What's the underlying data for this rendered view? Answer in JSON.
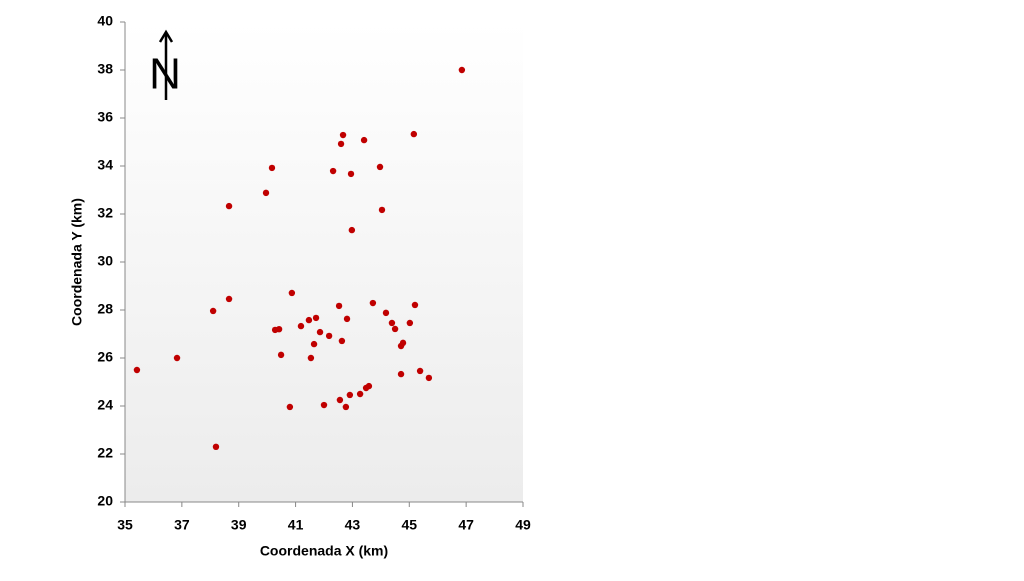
{
  "chart_data": {
    "type": "scatter",
    "x_label": "Coordenada X (km)",
    "y_label": "Coordenada Y (km)",
    "north_label": "N",
    "color": "#c00000",
    "xlim": [
      35,
      49
    ],
    "xticks": [
      35,
      37,
      39,
      41,
      43,
      45,
      47,
      49
    ],
    "ylim": [
      20,
      40
    ],
    "yticks": [
      20,
      22,
      24,
      26,
      28,
      30,
      32,
      34,
      36,
      38,
      40
    ],
    "x": [
      35.42,
      36.83,
      38.1,
      38.2,
      38.66,
      38.66,
      39.96,
      40.17,
      40.28,
      40.42,
      40.49,
      40.87,
      40.8,
      41.19,
      41.47,
      41.54,
      41.65,
      41.72,
      41.86,
      42.0,
      42.18,
      42.32,
      42.53,
      42.6,
      42.67,
      42.63,
      42.56,
      42.77,
      42.81,
      42.91,
      42.95,
      42.98,
      43.27,
      43.41,
      43.48,
      43.58,
      43.72,
      43.97,
      44.04,
      44.18,
      44.39,
      44.5,
      44.71,
      44.78,
      44.71,
      45.02,
      45.16,
      45.2,
      45.38,
      45.69,
      46.85
    ],
    "y": [
      25.5,
      26.0,
      27.96,
      22.3,
      32.33,
      28.46,
      32.88,
      33.92,
      27.17,
      27.2,
      26.13,
      28.71,
      23.96,
      27.33,
      27.58,
      26.0,
      26.58,
      27.67,
      27.08,
      24.04,
      26.92,
      33.79,
      28.17,
      34.92,
      35.29,
      26.71,
      24.25,
      23.96,
      27.63,
      24.46,
      33.67,
      31.33,
      24.5,
      35.08,
      24.75,
      24.83,
      28.29,
      33.96,
      32.17,
      27.88,
      27.46,
      27.21,
      26.5,
      26.63,
      25.33,
      27.46,
      35.33,
      28.21,
      25.46,
      25.17,
      38.0
    ]
  }
}
